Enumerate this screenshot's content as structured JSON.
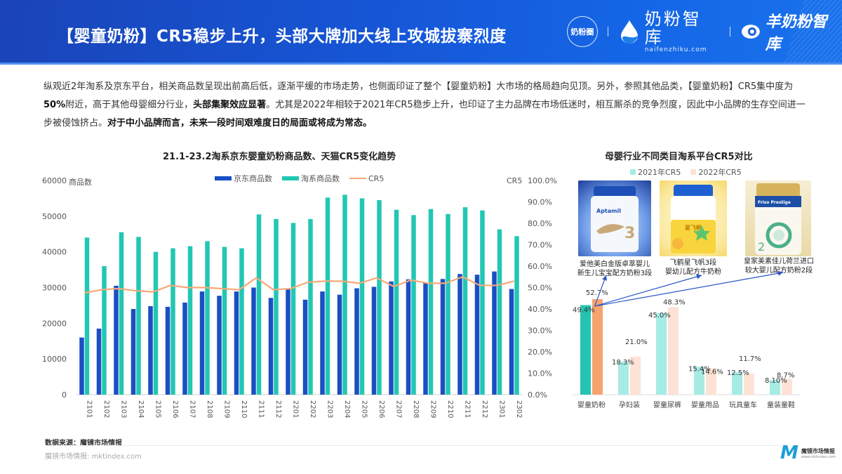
{
  "header": {
    "title": "【婴童奶粉】CR5稳步上升，头部大牌加大线上攻城拔寨烈度",
    "logos": [
      {
        "name": "奶粉圈",
        "label": "奶粉圈"
      },
      {
        "name": "奶粉智库",
        "label": "奶粉智库",
        "sub": "naifenzhiku.com"
      },
      {
        "name": "羊奶粉智库",
        "label": "羊奶粉智库"
      }
    ]
  },
  "intro": {
    "p1": "纵观近2年淘系及京东平台，相关商品数呈现出前高后低，逐渐平缓的市场走势，也侧面印证了整个【婴童奶粉】大市场的格局趋向见顶。另外，参照其他品类，【婴童奶粉】CR5集中度为",
    "b1": "50%",
    "p2": "附近，高于其他母婴细分行业，",
    "b2": "头部集聚效应显著",
    "p3": "。尤其是2022年相较于2021年CR5稳步上升，也印证了主力品牌在市场低迷时，相互厮杀的竞争烈度，因此中小品牌的生存空间进一步被侵蚀挤占。",
    "b3": "对于中小品牌而言，未来一段时间艰难度日的局面或将成为常态。"
  },
  "left_chart": {
    "title": "21.1-23.2淘系京东婴童奶粉商品数、天猫CR5变化趋势",
    "y_left_unit": "商品数",
    "y_right_unit": "CR5",
    "legend": [
      "京东商品数",
      "淘系商品数",
      "CR5"
    ]
  },
  "right_chart": {
    "title": "母婴行业不同类目淘系平台CR5对比",
    "legend": [
      "2021年CR5",
      "2022年CR5"
    ],
    "products": [
      {
        "caption1": "爱他美白金版卓萃婴儿",
        "caption2": "新生儿宝宝配方奶粉3段",
        "brand": "Aptamil",
        "num": "3"
      },
      {
        "caption1": "飞鹤星飞帆3段",
        "caption2": "婴幼儿配方牛奶粉",
        "brand": "星飞帆",
        "num": "3"
      },
      {
        "caption1": "皇家美素佳儿荷兰进口",
        "caption2": "较大婴儿配方奶粉2段",
        "brand": "Friso Prestige",
        "num": "2"
      }
    ]
  },
  "footer": {
    "source": "数据来源：魔镜市场情报",
    "site": "魔镜市场情报: mktindex.com",
    "logo_text": "魔镜市场情报",
    "logo_sub": "www.mktindex.com"
  },
  "colors": {
    "header_blue": "#1656d6",
    "jd_blue": "#1a4fc4",
    "taoxi_teal": "#22c7b4",
    "cr5_orange": "#f7a878",
    "cr5_2021": "#24c4b0",
    "cr5_2021_light": "#a6ece4",
    "cr5_2022": "#f7a36e",
    "cr5_2022_light": "#fde2d5"
  },
  "chart_data": [
    {
      "type": "bar",
      "title": "21.1-23.2淘系京东婴童奶粉商品数、天猫CR5变化趋势",
      "xlabel": "",
      "ylabel": "商品数",
      "ylabel_right": "CR5",
      "ylim": [
        0,
        60000
      ],
      "ylim_right": [
        0,
        1.0
      ],
      "yticks": [
        0,
        10000,
        20000,
        30000,
        40000,
        50000,
        60000
      ],
      "yticks_right": [
        "0.0%",
        "10.0%",
        "20.0%",
        "30.0%",
        "40.0%",
        "50.0%",
        "60.0%",
        "70.0%",
        "80.0%",
        "90.0%",
        "100.0%"
      ],
      "legend_position": "top",
      "grid": false,
      "categories": [
        "2101",
        "2102",
        "2103",
        "2104",
        "2105",
        "2106",
        "2107",
        "2108",
        "2109",
        "2110",
        "2111",
        "2112",
        "2201",
        "2202",
        "2203",
        "2204",
        "2205",
        "2206",
        "2207",
        "2208",
        "2209",
        "2210",
        "2211",
        "2212",
        "2301",
        "2302"
      ],
      "series": [
        {
          "name": "京东商品数",
          "type": "bar",
          "axis": "left",
          "values": [
            16000,
            18500,
            30500,
            24000,
            24800,
            24600,
            25800,
            28900,
            27700,
            28900,
            30000,
            27100,
            29800,
            26600,
            28900,
            28000,
            29800,
            30200,
            31700,
            32300,
            31300,
            32400,
            33800,
            33600,
            34500,
            29600
          ]
        },
        {
          "name": "淘系商品数",
          "type": "bar",
          "axis": "left",
          "values": [
            44000,
            36000,
            45500,
            44200,
            40000,
            41000,
            41600,
            43000,
            41400,
            41000,
            50500,
            49200,
            48100,
            49200,
            55200,
            56000,
            55000,
            54500,
            51800,
            50300,
            52000,
            50600,
            52500,
            51600,
            46300,
            44400
          ]
        },
        {
          "name": "CR5",
          "type": "line",
          "axis": "right",
          "values": [
            0.475,
            0.49,
            0.495,
            0.485,
            0.48,
            0.51,
            0.5,
            0.5,
            0.495,
            0.49,
            0.545,
            0.49,
            0.495,
            0.525,
            0.53,
            0.53,
            0.52,
            0.545,
            0.505,
            0.535,
            0.52,
            0.52,
            0.55,
            0.51,
            0.51,
            0.53
          ]
        }
      ]
    },
    {
      "type": "bar",
      "title": "母婴行业不同类目淘系平台CR5对比",
      "xlabel": "",
      "ylabel": "",
      "legend_position": "top",
      "grid": false,
      "categories": [
        "婴童奶粉",
        "孕妇装",
        "婴童尿裤",
        "婴童用品",
        "玩具童车",
        "童装童鞋"
      ],
      "series": [
        {
          "name": "2021年CR5",
          "values": [
            0.494,
            0.183,
            0.45,
            0.154,
            0.125,
            0.081
          ],
          "labels": [
            "49.4%",
            "18.3%",
            "45.0%",
            "15.4%",
            "12.5%",
            "8.10%"
          ]
        },
        {
          "name": "2022年CR5",
          "values": [
            0.527,
            0.21,
            0.483,
            0.146,
            0.117,
            0.087
          ],
          "labels": [
            "52.7%",
            "21.0%",
            "48.3%",
            "14.6%",
            "11.7%",
            "8.7%"
          ]
        }
      ]
    }
  ]
}
